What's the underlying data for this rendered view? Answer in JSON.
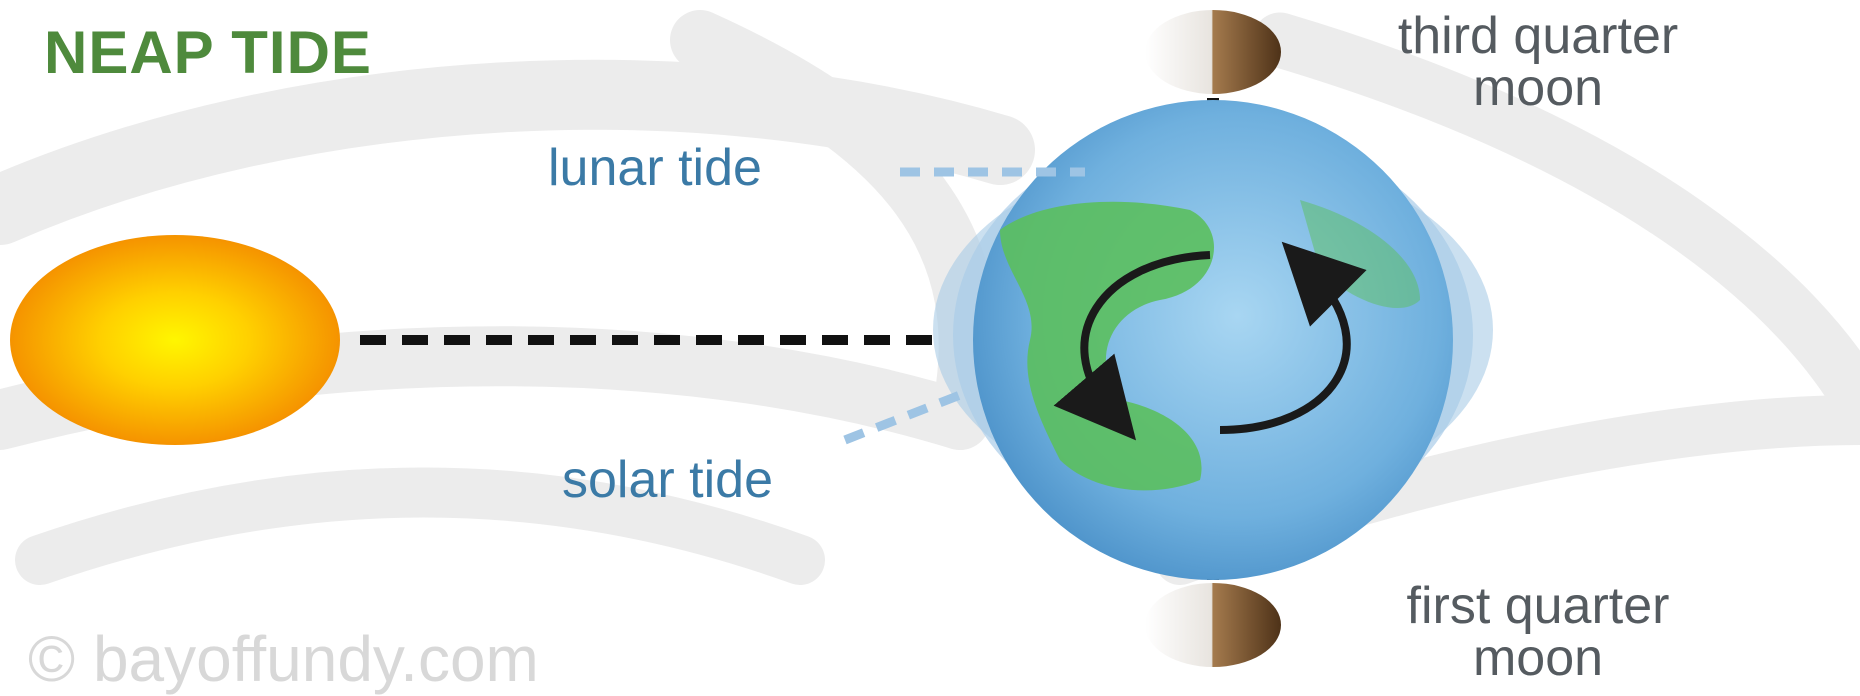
{
  "title": "NEAP TIDE",
  "labels": {
    "lunar_tide": "lunar tide",
    "solar_tide": "solar tide",
    "third_quarter_moon": [
      "third quarter",
      "moon"
    ],
    "first_quarter_moon": [
      "first quarter",
      "moon"
    ]
  },
  "credit": "© bayoffundy.com",
  "colors": {
    "title": "#4e8a3c",
    "tide_label": "#3b7aa6",
    "moon_label": "#555b60",
    "sun": "#ffb000",
    "ocean": "#7fb8e0",
    "land": "#5bbf5e",
    "moon_dark": "#6b4a2a"
  }
}
